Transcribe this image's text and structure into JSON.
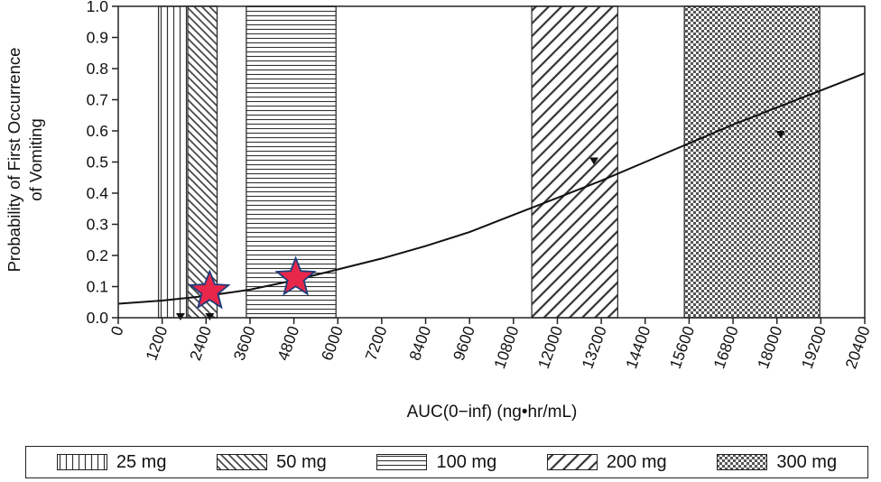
{
  "chart_data": {
    "type": "line",
    "xlabel": "AUC(0−inf) (ng•hr/mL)",
    "ylabel_lines": [
      "Probability of First Occurrence",
      "of Vomiting"
    ],
    "xlim": [
      0,
      20400
    ],
    "ylim": [
      0.0,
      1.0
    ],
    "x_ticks": [
      0,
      1200,
      2400,
      3600,
      4800,
      6000,
      7200,
      8400,
      9600,
      10800,
      12000,
      13200,
      14400,
      15600,
      16800,
      18000,
      19200,
      20400
    ],
    "y_ticks": [
      "0.0",
      "0.1",
      "0.2",
      "0.3",
      "0.4",
      "0.5",
      "0.6",
      "0.7",
      "0.8",
      "0.9",
      "1.0"
    ],
    "grid": false,
    "curve": {
      "x": [
        0,
        1200,
        2400,
        3600,
        4800,
        6000,
        7200,
        8400,
        9600,
        10800,
        12000,
        13200,
        14400,
        15600,
        16800,
        18000,
        19200,
        20400
      ],
      "y": [
        0.045,
        0.055,
        0.07,
        0.09,
        0.12,
        0.155,
        0.19,
        0.23,
        0.275,
        0.33,
        0.385,
        0.44,
        0.5,
        0.56,
        0.62,
        0.675,
        0.73,
        0.785
      ]
    },
    "dose_ranges": [
      {
        "label": "25 mg",
        "pattern": "vertical",
        "x0": 1100,
        "x1": 2700
      },
      {
        "label": "50 mg",
        "pattern": "crosshatch-diag",
        "x0": 1900,
        "x1": 2700
      },
      {
        "label": "100 mg",
        "pattern": "horizontal",
        "x0": 3500,
        "x1": 5950
      },
      {
        "label": "200 mg",
        "pattern": "diagonal",
        "x0": 11300,
        "x1": 13650
      },
      {
        "label": "300 mg",
        "pattern": "checker",
        "x0": 15470,
        "x1": 19170
      }
    ],
    "median_markers": [
      {
        "x": 1700,
        "y": 0.0
      },
      {
        "x": 2500,
        "y": 0.0
      },
      {
        "x": 13000,
        "y": 0.5
      },
      {
        "x": 18100,
        "y": 0.585
      }
    ],
    "stars": [
      {
        "x": 2500,
        "y": 0.085
      },
      {
        "x": 4850,
        "y": 0.128
      }
    ],
    "colors": {
      "star_fill": "#e8274a",
      "star_stroke": "#1f3b7a",
      "line": "#111111"
    },
    "legend": {
      "placement": "bottom",
      "items": [
        "25 mg",
        "50 mg",
        "100 mg",
        "200 mg",
        "300 mg"
      ]
    }
  }
}
